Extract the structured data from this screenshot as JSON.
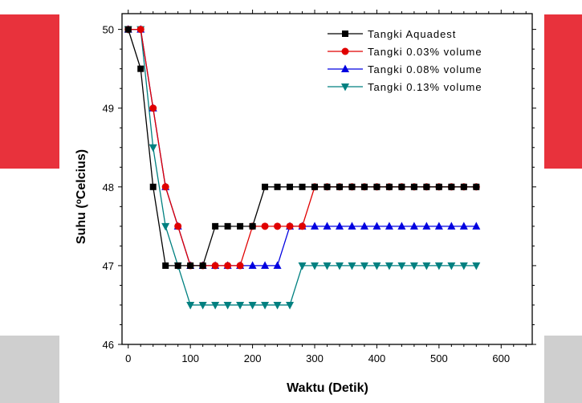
{
  "chart_data": {
    "type": "line",
    "xlabel": "Waktu (Detik)",
    "ylabel_main": "Suhu (",
    "ylabel_sup": "o",
    "ylabel_end": "Celcius)",
    "xlim": [
      -10,
      650
    ],
    "ylim": [
      46,
      50.2
    ],
    "xticks": [
      0,
      100,
      200,
      300,
      400,
      500,
      600
    ],
    "yticks": [
      46,
      47,
      48,
      49,
      50
    ],
    "legend_position": "top-right",
    "grid": false,
    "x": [
      0,
      20,
      40,
      60,
      80,
      100,
      120,
      140,
      160,
      180,
      200,
      220,
      240,
      260,
      280,
      300,
      320,
      340,
      360,
      380,
      400,
      420,
      440,
      460,
      480,
      500,
      520,
      540,
      560
    ],
    "series": [
      {
        "name": "Tangki Aquadest",
        "color": "#000000",
        "marker": "square",
        "values": [
          50,
          49.5,
          48,
          47,
          47,
          47,
          47,
          47.5,
          47.5,
          47.5,
          47.5,
          48,
          48,
          48,
          48,
          48,
          48,
          48,
          48,
          48,
          48,
          48,
          48,
          48,
          48,
          48,
          48,
          48,
          48
        ]
      },
      {
        "name": "Tangki 0.03% volume",
        "color": "#e00000",
        "marker": "circle",
        "values": [
          50,
          50,
          49,
          48,
          47.5,
          47,
          47,
          47,
          47,
          47,
          47.5,
          47.5,
          47.5,
          47.5,
          47.5,
          48,
          48,
          48,
          48,
          48,
          48,
          48,
          48,
          48,
          48,
          48,
          48,
          48,
          48
        ]
      },
      {
        "name": "Tangki 0.08% volume",
        "color": "#0000e0",
        "marker": "triangle-up",
        "values": [
          50,
          50,
          49,
          48,
          47.5,
          47,
          47,
          47,
          47,
          47,
          47,
          47,
          47,
          47.5,
          47.5,
          47.5,
          47.5,
          47.5,
          47.5,
          47.5,
          47.5,
          47.5,
          47.5,
          47.5,
          47.5,
          47.5,
          47.5,
          47.5,
          47.5
        ]
      },
      {
        "name": "Tangki 0.13% volume",
        "color": "#008080",
        "marker": "triangle-down",
        "values": [
          50,
          50,
          48.5,
          47.5,
          47,
          46.5,
          46.5,
          46.5,
          46.5,
          46.5,
          46.5,
          46.5,
          46.5,
          46.5,
          47,
          47,
          47,
          47,
          47,
          47,
          47,
          47,
          47,
          47,
          47,
          47,
          47,
          47,
          47
        ]
      }
    ]
  }
}
